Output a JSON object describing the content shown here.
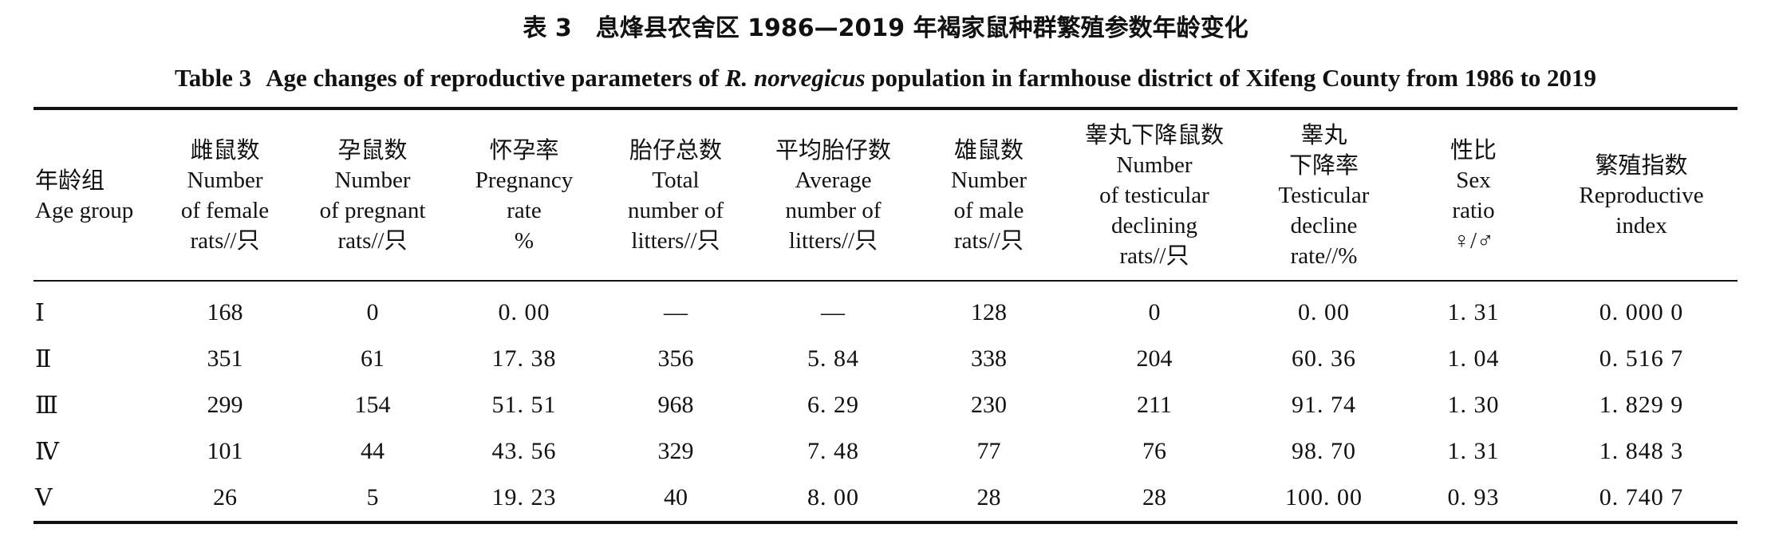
{
  "caption": {
    "zh_label": "表 3",
    "zh_title": "息烽县农舍区 1986—2019 年褐家鼠种群繁殖参数年龄变化",
    "en_label": "Table 3",
    "en_title_pre": "Age changes of reproductive parameters of",
    "en_species": "R. norvegicus",
    "en_title_post": "population in farmhouse district of Xifeng County from 1986 to 2019"
  },
  "columns": [
    {
      "zh": "年龄组",
      "en": [
        "Age group"
      ]
    },
    {
      "zh": "雌鼠数",
      "en": [
        "Number",
        "of female",
        "rats//只"
      ]
    },
    {
      "zh": "孕鼠数",
      "en": [
        "Number",
        "of pregnant",
        "rats//只"
      ]
    },
    {
      "zh": "怀孕率",
      "en": [
        "Pregnancy",
        "rate",
        "%"
      ]
    },
    {
      "zh": "胎仔总数",
      "en": [
        "Total",
        "number of",
        "litters//只"
      ]
    },
    {
      "zh": "平均胎仔数",
      "en": [
        "Average",
        "number of",
        "litters//只"
      ]
    },
    {
      "zh": "雄鼠数",
      "en": [
        "Number",
        "of male",
        "rats//只"
      ]
    },
    {
      "zh": "睾丸下降鼠数",
      "en": [
        "Number",
        "of testicular",
        "declining",
        "rats//只"
      ]
    },
    {
      "zh": "睾丸",
      "zh2": "下降率",
      "en": [
        "Testicular",
        "decline",
        "rate//%"
      ]
    },
    {
      "zh": "性比",
      "en": [
        "Sex",
        "ratio",
        "♀/♂"
      ]
    },
    {
      "zh": "繁殖指数",
      "en": [
        "Reproductive",
        "index"
      ]
    }
  ],
  "rows": [
    [
      "Ⅰ",
      "168",
      "0",
      "0. 00",
      "—",
      "—",
      "128",
      "0",
      "0. 00",
      "1. 31",
      "0. 000 0"
    ],
    [
      "Ⅱ",
      "351",
      "61",
      "17. 38",
      "356",
      "5. 84",
      "338",
      "204",
      "60. 36",
      "1. 04",
      "0. 516 7"
    ],
    [
      "Ⅲ",
      "299",
      "154",
      "51. 51",
      "968",
      "6. 29",
      "230",
      "211",
      "91. 74",
      "1. 30",
      "1. 829 9"
    ],
    [
      "Ⅳ",
      "101",
      "44",
      "43. 56",
      "329",
      "7. 48",
      "77",
      "76",
      "98. 70",
      "1. 31",
      "1. 848 3"
    ],
    [
      "Ⅴ",
      "26",
      "5",
      "19. 23",
      "40",
      "8. 00",
      "28",
      "28",
      "100. 00",
      "0. 93",
      "0. 740 7"
    ]
  ]
}
